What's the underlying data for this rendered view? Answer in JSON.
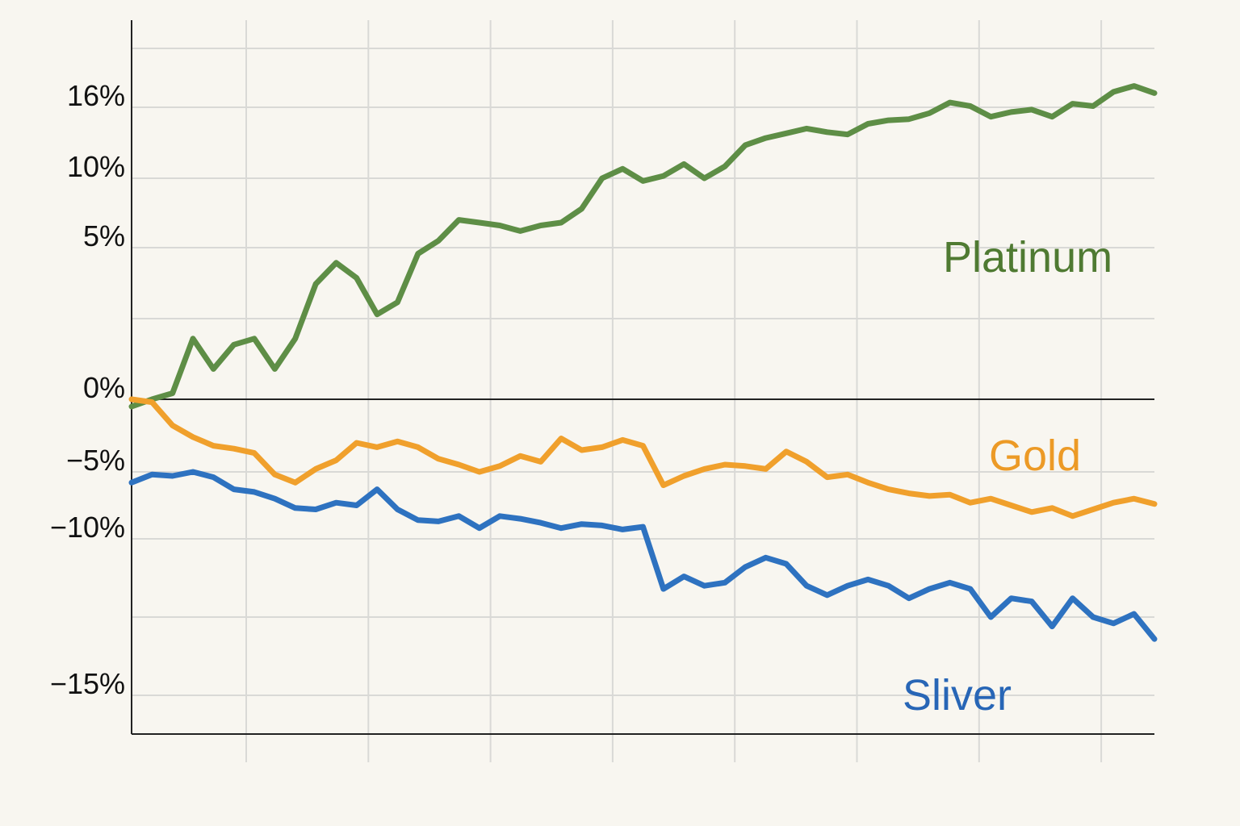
{
  "chart_data": {
    "type": "line",
    "title": "",
    "xlabel": "",
    "ylabel": "",
    "x_tick_count": 9,
    "y_ticks": [
      {
        "value": 16,
        "label": "16%"
      },
      {
        "value": 10,
        "label": "10%"
      },
      {
        "value": 5,
        "label": "5%"
      },
      {
        "value": 0,
        "label": "0%"
      },
      {
        "value": -5,
        "label": "−5%"
      },
      {
        "value": -10,
        "label": "−10%"
      },
      {
        "value": -15,
        "label": "−15%"
      }
    ],
    "grid": true,
    "legend": "inline labels at right",
    "series": [
      {
        "name": "Platinum",
        "color": "#5e8e46",
        "label_color": "#4f7a32",
        "x": [
          0,
          2,
          4,
          6,
          8,
          10,
          12,
          14,
          16,
          18,
          20,
          22,
          24,
          26,
          28,
          30,
          32,
          34,
          36,
          38,
          40,
          42,
          44,
          46,
          48,
          50,
          52,
          54,
          56,
          58,
          60,
          62,
          64,
          66,
          68,
          70,
          72,
          74,
          76,
          78,
          80,
          82,
          84,
          86,
          88,
          90,
          92,
          94,
          96,
          98,
          100
        ],
        "values": [
          -0.5,
          0,
          0.2,
          2,
          1,
          1.8,
          2.0,
          1.0,
          2.0,
          3.8,
          4.5,
          4.0,
          2.8,
          3.2,
          4.8,
          5.5,
          7.0,
          6.8,
          6.6,
          6.2,
          6.6,
          6.8,
          7.8,
          10.0,
          10.8,
          9.8,
          10.2,
          11.2,
          10.0,
          11.0,
          12.8,
          13.4,
          13.8,
          14.2,
          13.9,
          13.7,
          14.6,
          14.9,
          15.0,
          15.5,
          16.4,
          16.1,
          15.2,
          15.6,
          15.8,
          15.2,
          16.3,
          16.1,
          17.3,
          17.8,
          17.2
        ]
      },
      {
        "name": "Gold",
        "color": "#f0a02c",
        "label_color": "#ec9a26",
        "x": [
          0,
          2,
          4,
          6,
          8,
          10,
          12,
          14,
          16,
          18,
          20,
          22,
          24,
          26,
          28,
          30,
          32,
          34,
          36,
          38,
          40,
          42,
          44,
          46,
          48,
          50,
          52,
          54,
          56,
          58,
          60,
          62,
          64,
          66,
          68,
          70,
          72,
          74,
          76,
          78,
          80,
          82,
          84,
          86,
          88,
          90,
          92,
          94,
          96,
          98,
          100
        ],
        "values": [
          0,
          -0.2,
          -1.8,
          -2.6,
          -3.2,
          -3.4,
          -3.7,
          -5.2,
          -5.8,
          -4.8,
          -4.2,
          -3.0,
          -3.3,
          -2.9,
          -3.3,
          -4.1,
          -4.5,
          -5.0,
          -4.6,
          -3.9,
          -4.3,
          -2.7,
          -3.5,
          -3.3,
          -2.8,
          -3.2,
          -6.0,
          -5.3,
          -4.8,
          -4.5,
          -4.6,
          -4.8,
          -3.6,
          -4.3,
          -5.4,
          -5.2,
          -5.8,
          -6.3,
          -6.6,
          -6.8,
          -6.7,
          -7.3,
          -7.0,
          -7.5,
          -8.0,
          -7.7,
          -8.3,
          -7.8,
          -7.3,
          -7.0,
          -7.4
        ]
      },
      {
        "name": "Sliver",
        "color": "#2e72c0",
        "label_color": "#2866b6",
        "x": [
          0,
          2,
          4,
          6,
          8,
          10,
          12,
          14,
          16,
          18,
          20,
          22,
          24,
          26,
          28,
          30,
          32,
          34,
          36,
          38,
          40,
          42,
          44,
          46,
          48,
          50,
          52,
          54,
          56,
          58,
          60,
          62,
          64,
          66,
          68,
          70,
          72,
          74,
          76,
          78,
          80,
          82,
          84,
          86,
          88,
          90,
          92,
          94,
          96,
          98,
          100
        ],
        "values": [
          -5.8,
          -5.2,
          -5.3,
          -5.0,
          -5.4,
          -6.3,
          -6.5,
          -7.0,
          -7.7,
          -7.8,
          -7.3,
          -7.5,
          -6.3,
          -7.8,
          -8.6,
          -8.7,
          -8.3,
          -9.2,
          -8.3,
          -8.5,
          -8.8,
          -9.2,
          -8.9,
          -9.0,
          -9.3,
          -9.1,
          -11.6,
          -11.2,
          -11.5,
          -11.4,
          -10.9,
          -10.6,
          -10.8,
          -11.5,
          -11.8,
          -11.5,
          -11.3,
          -11.5,
          -11.9,
          -11.6,
          -11.4,
          -11.6,
          -12.5,
          -11.9,
          -12.0,
          -12.8,
          -11.9,
          -12.5,
          -12.7,
          -12.4,
          -13.2
        ]
      }
    ]
  }
}
